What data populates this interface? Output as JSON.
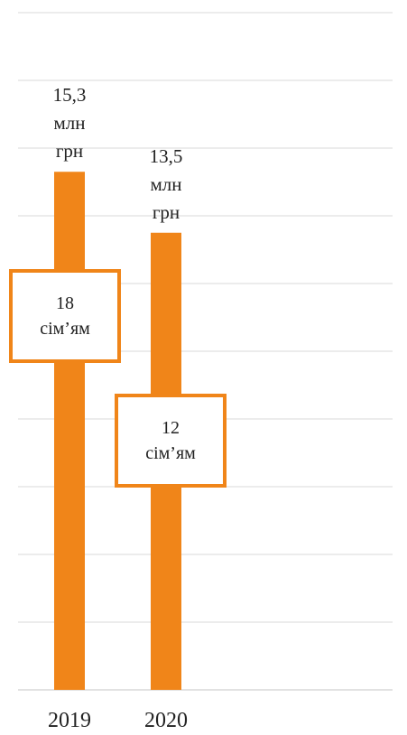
{
  "chart_data": {
    "type": "bar",
    "categories": [
      "2019",
      "2020"
    ],
    "series": [
      {
        "values": [
          15.3,
          13.5
        ]
      }
    ],
    "data_labels": [
      {
        "value": "15,3",
        "line2": "млн",
        "line3": "грн"
      },
      {
        "value": "13,5",
        "line2": "млн",
        "line3": "грн"
      }
    ],
    "secondary_labels": [
      {
        "value": "18",
        "unit": "сім’ям"
      },
      {
        "value": "12",
        "unit": "сім’ям"
      }
    ],
    "families": [
      18,
      12
    ],
    "ylim": [
      0,
      20
    ],
    "grid": true,
    "legend": "none",
    "colors": {
      "bar": "#F08519",
      "box_border": "#F08519",
      "grid": "#D9D9D9"
    }
  }
}
